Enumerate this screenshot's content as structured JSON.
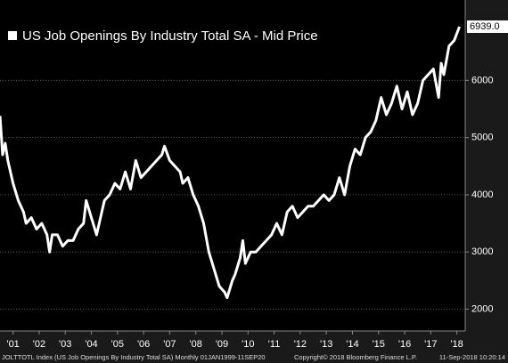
{
  "chart_data": {
    "type": "line",
    "title": "US Job Openings By Industry Total SA - Mid Price",
    "footer_left": "JOLTTOTL Index (US Job Openings By Industry Total SA)  Monthly 01JAN1999-11SEP20",
    "footer_mid": "Copyright© 2018 Bloomberg Finance L.P.",
    "footer_right": "11-Sep-2018 10:20:14",
    "xlim": [
      2001,
      2018.82
    ],
    "xticks": [
      {
        "value": 2001.5,
        "label": "'01"
      },
      {
        "value": 2002.5,
        "label": "'02"
      },
      {
        "value": 2003.5,
        "label": "'03"
      },
      {
        "value": 2004.5,
        "label": "'04"
      },
      {
        "value": 2005.5,
        "label": "'05"
      },
      {
        "value": 2006.5,
        "label": "'06"
      },
      {
        "value": 2007.5,
        "label": "'07"
      },
      {
        "value": 2008.5,
        "label": "'08"
      },
      {
        "value": 2009.5,
        "label": "'09"
      },
      {
        "value": 2010.5,
        "label": "'10"
      },
      {
        "value": 2011.5,
        "label": "'11"
      },
      {
        "value": 2012.5,
        "label": "'12"
      },
      {
        "value": 2013.5,
        "label": "'13"
      },
      {
        "value": 2014.5,
        "label": "'14"
      },
      {
        "value": 2015.5,
        "label": "'15"
      },
      {
        "value": 2016.5,
        "label": "'16"
      },
      {
        "value": 2017.5,
        "label": "'17"
      },
      {
        "value": 2018.5,
        "label": "'18"
      }
    ],
    "ylim": [
      1650,
      7250
    ],
    "yticks": [
      2000,
      3000,
      4000,
      5000,
      6000
    ],
    "grid": true,
    "x": [
      2001.0,
      2001.1,
      2001.2,
      2001.3,
      2001.5,
      2001.7,
      2001.9,
      2002.0,
      2002.2,
      2002.4,
      2002.6,
      2002.8,
      2002.9,
      2003.0,
      2003.2,
      2003.4,
      2003.6,
      2003.8,
      2004.0,
      2004.2,
      2004.3,
      2004.5,
      2004.7,
      2004.9,
      2005.0,
      2005.2,
      2005.4,
      2005.6,
      2005.8,
      2006.0,
      2006.2,
      2006.4,
      2006.6,
      2006.8,
      2007.0,
      2007.2,
      2007.3,
      2007.5,
      2007.7,
      2007.9,
      2008.0,
      2008.2,
      2008.4,
      2008.6,
      2008.8,
      2009.0,
      2009.2,
      2009.4,
      2009.6,
      2009.7,
      2009.9,
      2010.0,
      2010.2,
      2010.3,
      2010.4,
      2010.6,
      2010.8,
      2011.0,
      2011.2,
      2011.4,
      2011.6,
      2011.8,
      2012.0,
      2012.2,
      2012.4,
      2012.6,
      2012.8,
      2013.0,
      2013.2,
      2013.4,
      2013.6,
      2013.8,
      2014.0,
      2014.2,
      2014.4,
      2014.6,
      2014.8,
      2015.0,
      2015.2,
      2015.4,
      2015.6,
      2015.8,
      2016.0,
      2016.2,
      2016.4,
      2016.6,
      2016.8,
      2017.0,
      2017.2,
      2017.4,
      2017.6,
      2017.8,
      2017.9,
      2018.0,
      2018.2,
      2018.4,
      2018.6
    ],
    "series": [
      {
        "name": "US Job Openings By Industry Total SA - Mid Price",
        "color": "#ffffff",
        "values": [
          5380,
          4700,
          4900,
          4600,
          4200,
          3900,
          3700,
          3500,
          3600,
          3400,
          3500,
          3300,
          3000,
          3300,
          3300,
          3100,
          3200,
          3200,
          3400,
          3500,
          3900,
          3600,
          3300,
          3700,
          3900,
          4000,
          4200,
          4100,
          4400,
          4100,
          4600,
          4300,
          4400,
          4500,
          4600,
          4700,
          4850,
          4600,
          4500,
          4400,
          4200,
          4300,
          4000,
          3800,
          3500,
          3000,
          2700,
          2400,
          2300,
          2200,
          2500,
          2600,
          2900,
          3200,
          2800,
          3000,
          3000,
          3100,
          3200,
          3300,
          3500,
          3300,
          3700,
          3800,
          3600,
          3700,
          3800,
          3800,
          3900,
          4000,
          3900,
          4000,
          4300,
          4000,
          4500,
          4800,
          4700,
          5000,
          5100,
          5300,
          5700,
          5400,
          5600,
          5900,
          5500,
          5800,
          5400,
          5600,
          6000,
          6100,
          6200,
          5700,
          6300,
          6100,
          6600,
          6700,
          6939
        ],
        "value_labels": [
          null,
          null,
          null,
          null,
          null,
          null,
          null,
          null,
          null,
          null,
          null,
          null,
          null,
          null,
          null,
          null,
          null,
          null,
          null,
          null,
          null,
          null,
          null,
          null,
          null,
          null,
          null,
          null,
          null,
          null,
          null,
          null,
          null,
          null,
          null,
          null,
          null,
          null,
          null,
          null,
          null,
          null,
          null,
          null,
          null,
          null,
          null,
          null,
          null,
          null,
          null,
          null,
          null,
          null,
          null,
          null,
          null,
          null,
          null,
          null,
          null,
          null,
          null,
          null,
          null,
          null,
          null,
          null,
          null,
          null,
          null,
          null,
          null,
          null,
          null,
          null,
          null,
          null,
          null,
          null,
          null,
          null,
          null,
          null,
          null,
          null,
          null,
          null,
          null,
          null,
          null,
          null,
          null,
          null,
          null,
          null,
          "6939.0"
        ]
      }
    ]
  }
}
